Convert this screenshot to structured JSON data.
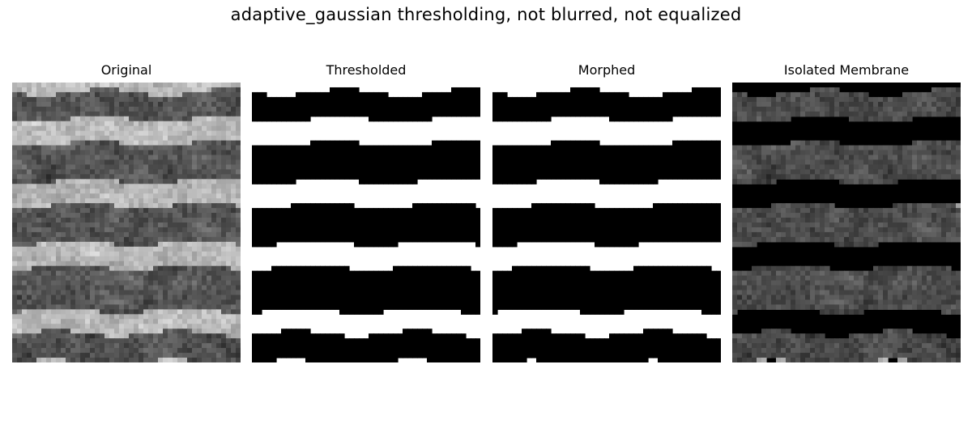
{
  "figure": {
    "title": "adaptive_gaussian thresholding, not blurred, not equalized"
  },
  "panels": [
    {
      "id": "original",
      "title": "Original"
    },
    {
      "id": "thresholded",
      "title": "Thresholded"
    },
    {
      "id": "morphed",
      "title": "Morphed"
    },
    {
      "id": "isolated",
      "title": "Isolated Membrane"
    }
  ]
}
